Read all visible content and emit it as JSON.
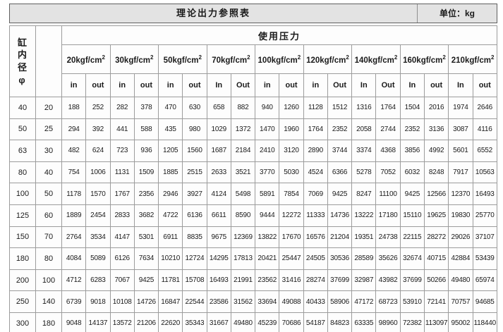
{
  "title_bar": {
    "title": "理论出力参照表",
    "unit_label": "单位：kg"
  },
  "table": {
    "corner_header": "缸内径φ",
    "usage_header": "使用压力",
    "pressures": [
      {
        "label": "20kgf/cm",
        "sup": "2",
        "in": "in",
        "out": "out"
      },
      {
        "label": "30kgf/cm",
        "sup": "2",
        "in": "in",
        "out": "out"
      },
      {
        "label": "50kgf/cm",
        "sup": "2",
        "in": "in",
        "out": "out"
      },
      {
        "label": "70kgf/cm",
        "sup": "2",
        "in": "In",
        "out": "Out"
      },
      {
        "label": "100kgf/cm",
        "sup": "2",
        "in": "in",
        "out": "out"
      },
      {
        "label": "120kgf/cm",
        "sup": "2",
        "in": "in",
        "out": "Out"
      },
      {
        "label": "140kgf/cm",
        "sup": "2",
        "in": "In",
        "out": "Out"
      },
      {
        "label": "160kgf/cm",
        "sup": "2",
        "in": "In",
        "out": "out"
      },
      {
        "label": "210kgf/cm",
        "sup": "2",
        "in": "In",
        "out": "out"
      }
    ],
    "rows": [
      {
        "bore": "40",
        "rod": "20",
        "values": [
          "188",
          "252",
          "282",
          "378",
          "470",
          "630",
          "658",
          "882",
          "940",
          "1260",
          "1128",
          "1512",
          "1316",
          "1764",
          "1504",
          "2016",
          "1974",
          "2646"
        ]
      },
      {
        "bore": "50",
        "rod": "25",
        "values": [
          "294",
          "392",
          "441",
          "588",
          "435",
          "980",
          "1029",
          "1372",
          "1470",
          "1960",
          "1764",
          "2352",
          "2058",
          "2744",
          "2352",
          "3136",
          "3087",
          "4116"
        ]
      },
      {
        "bore": "63",
        "rod": "30",
        "values": [
          "482",
          "624",
          "723",
          "936",
          "1205",
          "1560",
          "1687",
          "2184",
          "2410",
          "3120",
          "2890",
          "3744",
          "3374",
          "4368",
          "3856",
          "4992",
          "5601",
          "6552"
        ]
      },
      {
        "bore": "80",
        "rod": "40",
        "values": [
          "754",
          "1006",
          "1131",
          "1509",
          "1885",
          "2515",
          "2633",
          "3521",
          "3770",
          "5030",
          "4524",
          "6366",
          "5278",
          "7052",
          "6032",
          "8248",
          "7917",
          "10563"
        ]
      },
      {
        "bore": "100",
        "rod": "50",
        "values": [
          "1178",
          "1570",
          "1767",
          "2356",
          "2946",
          "3927",
          "4124",
          "5498",
          "5891",
          "7854",
          "7069",
          "9425",
          "8247",
          "11100",
          "9425",
          "12566",
          "12370",
          "16493"
        ]
      },
      {
        "bore": "125",
        "rod": "60",
        "values": [
          "1889",
          "2454",
          "2833",
          "3682",
          "4722",
          "6136",
          "6611",
          "8590",
          "9444",
          "12272",
          "11333",
          "14736",
          "13222",
          "17180",
          "15110",
          "19625",
          "19830",
          "25770"
        ]
      },
      {
        "bore": "150",
        "rod": "70",
        "values": [
          "2764",
          "3534",
          "4147",
          "5301",
          "6911",
          "8835",
          "9675",
          "12369",
          "13822",
          "17670",
          "16576",
          "21204",
          "19351",
          "24738",
          "22115",
          "28272",
          "29026",
          "37107"
        ]
      },
      {
        "bore": "180",
        "rod": "80",
        "values": [
          "4084",
          "5089",
          "6126",
          "7634",
          "10210",
          "12724",
          "14295",
          "17813",
          "20421",
          "25447",
          "24505",
          "30536",
          "28589",
          "35626",
          "32674",
          "40715",
          "42884",
          "53439"
        ]
      },
      {
        "bore": "200",
        "rod": "100",
        "values": [
          "4712",
          "6283",
          "7067",
          "9425",
          "11781",
          "15708",
          "16493",
          "21991",
          "23562",
          "31416",
          "28274",
          "37699",
          "32987",
          "43982",
          "37699",
          "50266",
          "49480",
          "65974"
        ]
      },
      {
        "bore": "250",
        "rod": "140",
        "values": [
          "6739",
          "9018",
          "10108",
          "14726",
          "16847",
          "22544",
          "23586",
          "31562",
          "33694",
          "49088",
          "40433",
          "58906",
          "47172",
          "68723",
          "53910",
          "72141",
          "70757",
          "94685"
        ]
      },
      {
        "bore": "300",
        "rod": "180",
        "values": [
          "9048",
          "14137",
          "13572",
          "21206",
          "22620",
          "35343",
          "31667",
          "49480",
          "45239",
          "70686",
          "54187",
          "84823",
          "63335",
          "98960",
          "72382",
          "113097",
          "95002",
          "118440"
        ]
      }
    ]
  }
}
